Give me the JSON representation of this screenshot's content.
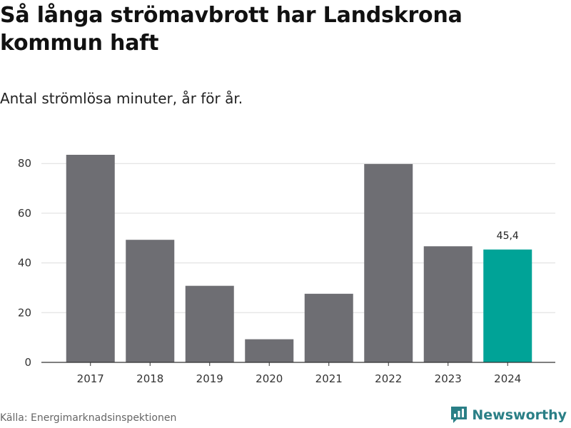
{
  "title": "Så långa strömavbrott har Landskrona kommun haft",
  "subtitle": "Antal strömlösa minuter, år för år.",
  "source": "Källa: Energimarknadsinspektionen",
  "brand": {
    "name": "Newsworthy",
    "icon": "newsworthy-logo-icon",
    "color": "#2a7f86"
  },
  "colors": {
    "bar": "#6e6e73",
    "highlight": "#00a397",
    "grid": "#dddddd",
    "axis": "#333333"
  },
  "chart_data": {
    "type": "bar",
    "title": "Så långa strömavbrott har Landskrona kommun haft",
    "subtitle": "Antal strömlösa minuter, år för år.",
    "categories": [
      "2017",
      "2018",
      "2019",
      "2020",
      "2021",
      "2022",
      "2023",
      "2024"
    ],
    "values": [
      83.5,
      49.3,
      30.8,
      9.3,
      27.6,
      79.8,
      46.7,
      45.4
    ],
    "highlight_index": 7,
    "data_labels": [
      {
        "index": 7,
        "text": "45,4"
      }
    ],
    "xlabel": "",
    "ylabel": "",
    "ylim": [
      0,
      90
    ],
    "yticks": [
      0,
      20,
      40,
      60,
      80
    ],
    "grid": true
  }
}
